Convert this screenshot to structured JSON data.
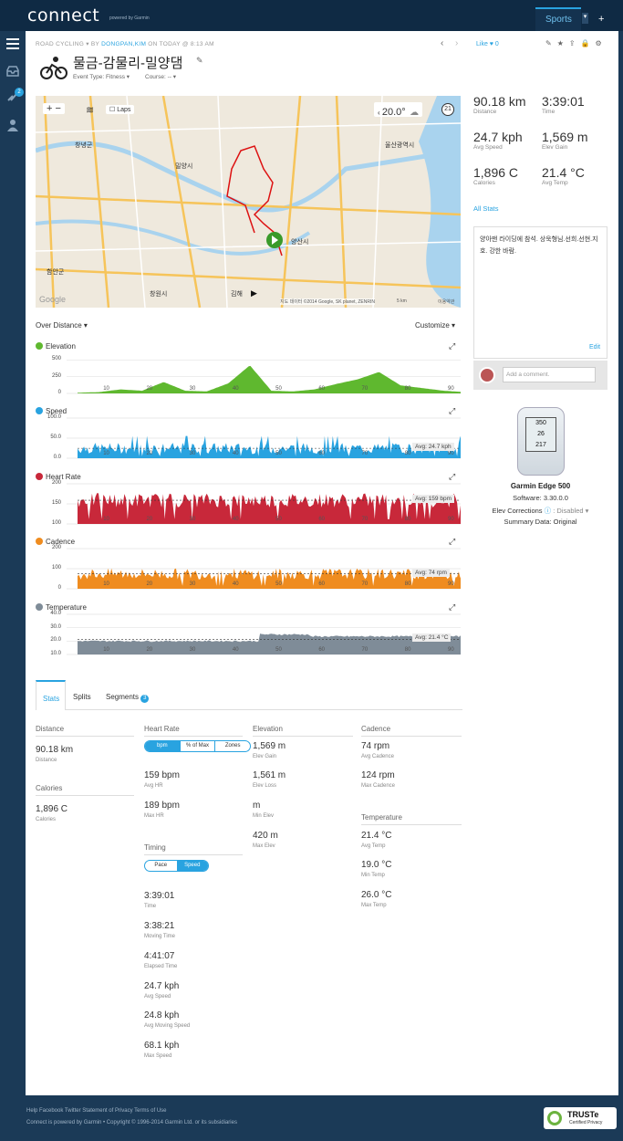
{
  "topbar": {
    "logo": "connect",
    "logo_sub": "powered by Garmin",
    "sports_tab": "Sports",
    "caret": "▾",
    "plus": "+"
  },
  "sidenav": {
    "badge": "2"
  },
  "activity": {
    "type": "ROAD CYCLING",
    "by": "BY",
    "user": "DONGPAN,KIM",
    "when": "ON TODAY @ 8:13 AM",
    "title": "물금-감물리-밀양댐",
    "event_type": "Event Type: Fitness ▾",
    "course": "Course: -- ▾",
    "like_label": "Like",
    "like_count": "0"
  },
  "map": {
    "laps_label": "Laps",
    "temp": "20.0°",
    "weather_badge": "21",
    "copyright": "지도 데이터 ©2014 Google, SK planet, ZENRIN",
    "scale": "5 km",
    "terms": "이용약관",
    "google": "Google",
    "places": [
      "창녕군",
      "밀양시",
      "울산광역시",
      "양산시",
      "함안군",
      "창원시",
      "김해"
    ]
  },
  "summary": {
    "distance": {
      "value": "90.18 km",
      "label": "Distance"
    },
    "time": {
      "value": "3:39:01",
      "label": "Time"
    },
    "avg_speed": {
      "value": "24.7 kph",
      "label": "Avg Speed"
    },
    "elev_gain": {
      "value": "1,569 m",
      "label": "Elev Gain"
    },
    "calories": {
      "value": "1,896 C",
      "label": "Calories"
    },
    "avg_temp": {
      "value": "21.4 °C",
      "label": "Avg Temp"
    },
    "all_stats": "All Stats"
  },
  "notes": {
    "text": "양아맨 라이딩에 참석. 상욱형님.선희.선현.지호. 강한 바람.",
    "edit": "Edit",
    "comment_placeholder": "Add a comment."
  },
  "device": {
    "name": "Garmin Edge 500",
    "software": "Software: 3.30.0.0",
    "elev_corrections": "Elev Corrections",
    "disabled": ": Disabled ▾",
    "summary_data": "Summary Data: Original",
    "screen_top": "350",
    "screen_mid": "26",
    "screen_bot": "217"
  },
  "charts": {
    "over_distance": "Over Distance ▾",
    "customize": "Customize ▾",
    "elevation": {
      "title": "Elevation",
      "color": "#5fb82f",
      "yticks": [
        "500",
        "250",
        "0"
      ]
    },
    "speed": {
      "title": "Speed",
      "color": "#29a3e0",
      "yticks": [
        "100.0",
        "50.0",
        "0.0"
      ],
      "avg": "Avg: 24.7 kph"
    },
    "heart_rate": {
      "title": "Heart Rate",
      "color": "#c8283a",
      "yticks": [
        "200",
        "150",
        "100"
      ],
      "avg": "Avg: 159 bpm"
    },
    "cadence": {
      "title": "Cadence",
      "color": "#ef8c1f",
      "yticks": [
        "200",
        "100",
        "0"
      ],
      "avg": "Avg: 74 rpm"
    },
    "temperature": {
      "title": "Temperature",
      "color": "#7f8c98",
      "yticks": [
        "40.0",
        "30.0",
        "20.0",
        "10.0"
      ],
      "avg": "Avg: 21.4 °C"
    },
    "xticks": [
      "10",
      "20",
      "30",
      "40",
      "50",
      "60",
      "70",
      "80",
      "90"
    ]
  },
  "chart_data": [
    {
      "type": "area",
      "title": "Elevation",
      "x": [
        0,
        5,
        10,
        15,
        20,
        25,
        30,
        35,
        40,
        45,
        50,
        55,
        60,
        65,
        70,
        75,
        80,
        85,
        90
      ],
      "values": [
        10,
        20,
        60,
        40,
        170,
        40,
        30,
        150,
        420,
        40,
        30,
        60,
        140,
        210,
        320,
        120,
        80,
        40,
        20
      ],
      "ylim": [
        0,
        600
      ]
    },
    {
      "type": "area",
      "title": "Speed",
      "avg": 24.7,
      "ylim": [
        0,
        100
      ]
    },
    {
      "type": "area",
      "title": "Heart Rate",
      "avg": 159,
      "ylim": [
        100,
        200
      ]
    },
    {
      "type": "area",
      "title": "Cadence",
      "avg": 74,
      "ylim": [
        0,
        200
      ]
    },
    {
      "type": "area",
      "title": "Temperature",
      "avg": 21.4,
      "ylim": [
        10,
        40
      ]
    }
  ],
  "stats_tabs": {
    "stats": "Stats",
    "splits": "Splits",
    "segments": "Segments",
    "segments_count": "3"
  },
  "stats": {
    "distance_h": "Distance",
    "distance_v": "90.18 km",
    "distance_l": "Distance",
    "calories_h": "Calories",
    "calories_v": "1,896 C",
    "calories_l": "Calories",
    "hr_h": "Heart Rate",
    "hr_toggle": [
      "bpm",
      "% of Max",
      "Zones"
    ],
    "avg_hr_v": "159 bpm",
    "avg_hr_l": "Avg HR",
    "max_hr_v": "189 bpm",
    "max_hr_l": "Max HR",
    "timing_h": "Timing",
    "timing_toggle": [
      "Pace",
      "Speed"
    ],
    "time_v": "3:39:01",
    "time_l": "Time",
    "moving_v": "3:38:21",
    "moving_l": "Moving Time",
    "elapsed_v": "4:41:07",
    "elapsed_l": "Elapsed Time",
    "avgspd_v": "24.7 kph",
    "avgspd_l": "Avg Speed",
    "avgmov_v": "24.8 kph",
    "avgmov_l": "Avg Moving Speed",
    "maxspd_v": "68.1 kph",
    "maxspd_l": "Max Speed",
    "elev_h": "Elevation",
    "gain_v": "1,569 m",
    "gain_l": "Elev Gain",
    "loss_v": "1,561 m",
    "loss_l": "Elev Loss",
    "min_v": "m",
    "min_l": "Min Elev",
    "max_v": "420 m",
    "max_l": "Max Elev",
    "cad_h": "Cadence",
    "avgcad_v": "74 rpm",
    "avgcad_l": "Avg Cadence",
    "maxcad_v": "124 rpm",
    "maxcad_l": "Max Cadence",
    "temp_h": "Temperature",
    "avgt_v": "21.4 °C",
    "avgt_l": "Avg Temp",
    "mint_v": "19.0 °C",
    "mint_l": "Min Temp",
    "maxt_v": "26.0 °C",
    "maxt_l": "Max Temp"
  },
  "footer": {
    "links": "Help Facebook Twitter Statement of Privacy Terms of Use",
    "copyright": "Connect is powered by Garmin • Copyright © 1996-2014 Garmin Ltd. or its subsidiaries",
    "truste": "TRUSTe",
    "truste_sub": "Certified Privacy"
  }
}
